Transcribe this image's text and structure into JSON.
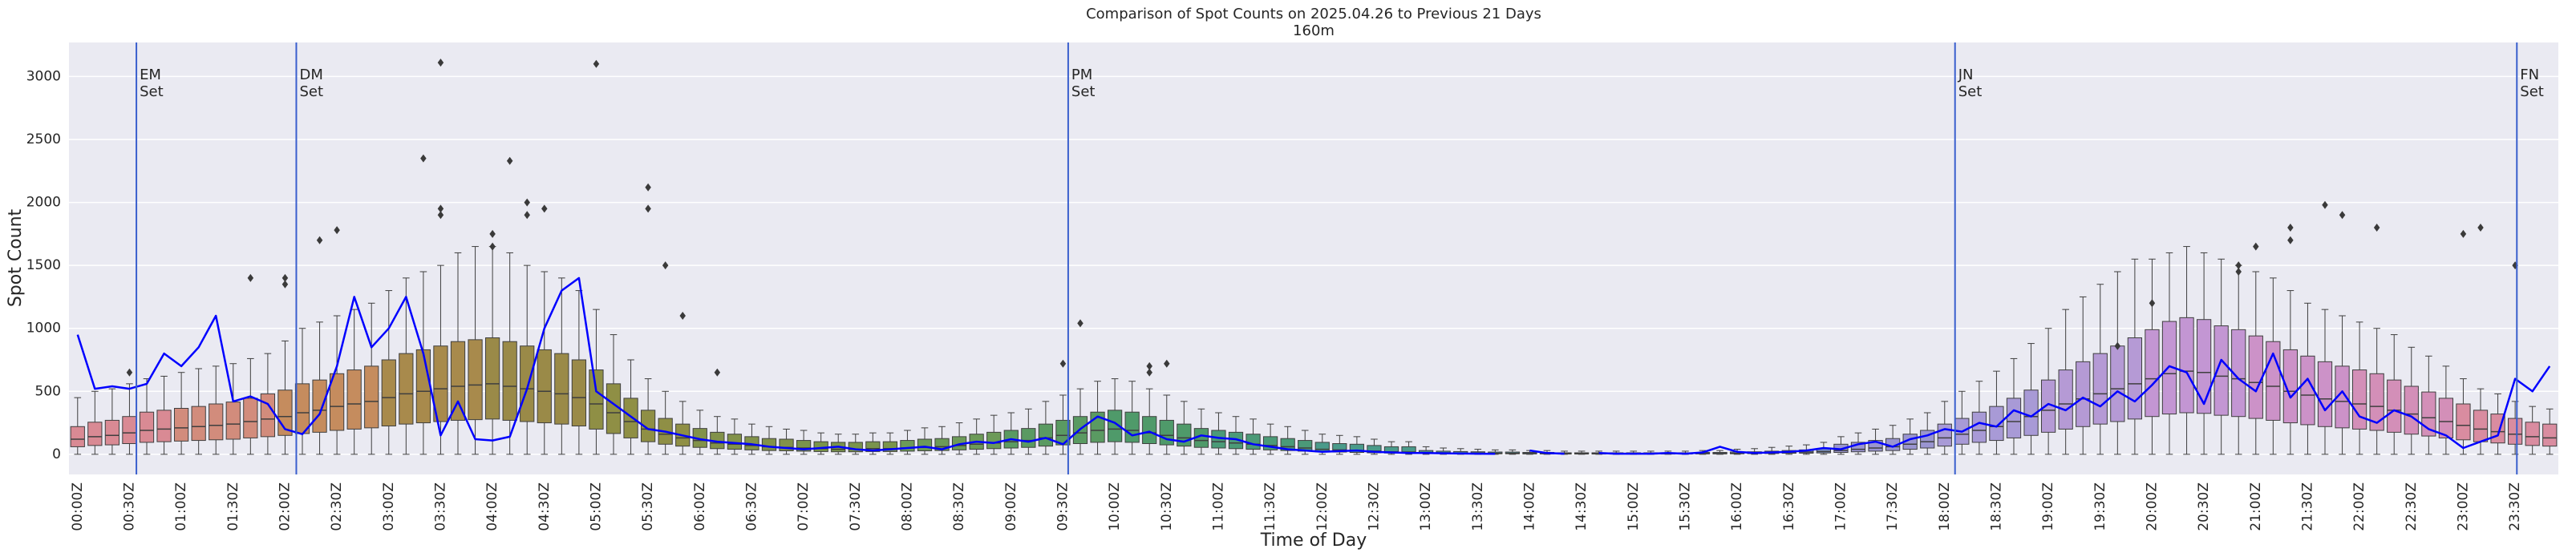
{
  "chart_data": {
    "type": "box",
    "title": "Comparison of Spot Counts on 2025.04.26 to Previous 21 Days",
    "subtitle": "160m",
    "xlabel": "Time of Day",
    "ylabel": "Spot Count",
    "ylim": [
      -160,
      3270
    ],
    "yticks": [
      0,
      500,
      1000,
      1500,
      2000,
      2500,
      3000
    ],
    "grid": true,
    "categories": [
      "00:00Z",
      null,
      null,
      "00:30Z",
      null,
      null,
      "01:00Z",
      null,
      null,
      "01:30Z",
      null,
      null,
      "02:00Z",
      null,
      null,
      "02:30Z",
      null,
      null,
      "03:00Z",
      null,
      null,
      "03:30Z",
      null,
      null,
      "04:00Z",
      null,
      null,
      "04:30Z",
      null,
      null,
      "05:00Z",
      null,
      null,
      "05:30Z",
      null,
      null,
      "06:00Z",
      null,
      null,
      "06:30Z",
      null,
      null,
      "07:00Z",
      null,
      null,
      "07:30Z",
      null,
      null,
      "08:00Z",
      null,
      null,
      "08:30Z",
      null,
      null,
      "09:00Z",
      null,
      null,
      "09:30Z",
      null,
      null,
      "10:00Z",
      null,
      null,
      "10:30Z",
      null,
      null,
      "11:00Z",
      null,
      null,
      "11:30Z",
      null,
      null,
      "12:00Z",
      null,
      null,
      "12:30Z",
      null,
      null,
      "13:00Z",
      null,
      null,
      "13:30Z",
      null,
      null,
      "14:00Z",
      null,
      null,
      "14:30Z",
      null,
      null,
      "15:00Z",
      null,
      null,
      "15:30Z",
      null,
      null,
      "16:00Z",
      null,
      null,
      "16:30Z",
      null,
      null,
      "17:00Z",
      null,
      null,
      "17:30Z",
      null,
      null,
      "18:00Z",
      null,
      null,
      "18:30Z",
      null,
      null,
      "19:00Z",
      null,
      null,
      "19:30Z",
      null,
      null,
      "20:00Z",
      null,
      null,
      "20:30Z",
      null,
      null,
      "21:00Z",
      null,
      null,
      "21:30Z",
      null,
      null,
      "22:00Z",
      null,
      null,
      "22:30Z",
      null,
      null,
      "23:00Z",
      null,
      null,
      "23:30Z",
      null,
      null
    ],
    "box_colors": [
      "#d98a94",
      "#d28c7c",
      "#c58c5e",
      "#a88a4c",
      "#9a8a48",
      "#8f8f45",
      "#82924a",
      "#7a944c",
      "#6c9a58",
      "#5a9a62",
      "#4f9a6a",
      "#4b9a78",
      "#4a9a8a",
      "#4f98a0",
      "#5893b5",
      "#6a91c2",
      "#7a90c8",
      "#9a95d0",
      "#a89ad6",
      "#b59ad5",
      "#c396d3",
      "#cc92c8",
      "#d38fb8",
      "#d98ca0"
    ],
    "whislo": [
      0,
      0,
      0,
      0,
      0,
      0,
      0,
      0,
      0,
      0,
      0,
      0,
      0,
      0,
      0,
      0,
      0,
      0,
      0,
      0,
      0,
      0,
      0,
      0,
      0,
      0,
      0,
      0,
      0,
      0,
      0,
      0,
      0,
      0,
      0,
      0,
      0,
      0,
      0,
      0,
      0,
      0,
      0,
      0,
      0,
      0,
      0,
      0,
      0,
      0,
      0,
      0,
      0,
      0,
      0,
      0,
      0,
      0,
      0,
      0,
      0,
      0,
      0,
      0,
      0,
      0,
      0,
      0,
      0,
      0,
      0,
      0,
      0,
      0,
      0,
      0,
      0,
      0,
      0,
      0,
      0,
      0,
      0,
      0,
      0,
      0,
      0,
      0,
      0,
      0,
      0,
      0,
      0,
      0,
      0,
      0,
      0,
      0,
      0,
      0,
      0,
      0,
      0,
      0,
      0,
      0,
      0,
      0,
      0,
      0,
      0,
      0,
      0,
      0,
      0,
      0,
      0,
      0,
      0,
      0,
      0,
      0,
      0,
      0,
      0,
      0,
      0,
      0,
      0,
      0,
      0,
      0,
      0,
      0,
      0,
      0,
      0,
      0,
      0,
      0,
      0,
      0,
      0,
      0
    ],
    "q1": [
      60,
      70,
      75,
      85,
      95,
      100,
      105,
      110,
      115,
      120,
      130,
      140,
      150,
      165,
      175,
      190,
      200,
      210,
      225,
      240,
      250,
      260,
      270,
      275,
      280,
      270,
      260,
      250,
      240,
      225,
      200,
      165,
      130,
      100,
      80,
      65,
      55,
      45,
      40,
      35,
      30,
      28,
      25,
      22,
      20,
      20,
      22,
      22,
      25,
      28,
      30,
      35,
      40,
      45,
      50,
      55,
      65,
      75,
      85,
      95,
      100,
      95,
      85,
      75,
      65,
      55,
      50,
      45,
      40,
      35,
      30,
      25,
      20,
      18,
      15,
      12,
      10,
      9,
      8,
      6,
      5,
      5,
      4,
      4,
      3,
      3,
      2,
      2,
      2,
      2,
      2,
      2,
      2,
      2,
      3,
      3,
      4,
      5,
      6,
      8,
      9,
      11,
      15,
      20,
      25,
      30,
      40,
      50,
      65,
      80,
      95,
      110,
      130,
      150,
      175,
      200,
      220,
      240,
      260,
      280,
      300,
      320,
      330,
      325,
      310,
      300,
      285,
      270,
      250,
      235,
      220,
      210,
      200,
      190,
      175,
      160,
      145,
      130,
      115,
      100,
      90,
      80,
      70,
      65
    ],
    "median": [
      120,
      140,
      150,
      170,
      190,
      200,
      210,
      220,
      230,
      240,
      260,
      280,
      300,
      330,
      350,
      380,
      400,
      420,
      450,
      480,
      500,
      520,
      540,
      550,
      560,
      540,
      520,
      500,
      480,
      450,
      400,
      330,
      260,
      200,
      160,
      130,
      110,
      90,
      80,
      70,
      60,
      55,
      50,
      45,
      40,
      40,
      45,
      45,
      50,
      55,
      60,
      70,
      80,
      90,
      100,
      110,
      130,
      150,
      170,
      190,
      200,
      190,
      170,
      150,
      130,
      110,
      100,
      90,
      80,
      70,
      60,
      50,
      40,
      35,
      30,
      25,
      20,
      18,
      15,
      12,
      10,
      10,
      8,
      8,
      6,
      6,
      5,
      5,
      5,
      5,
      5,
      5,
      5,
      5,
      6,
      6,
      8,
      10,
      12,
      15,
      18,
      22,
      30,
      40,
      50,
      60,
      80,
      100,
      130,
      160,
      190,
      220,
      260,
      300,
      350,
      400,
      440,
      480,
      520,
      560,
      600,
      640,
      660,
      650,
      620,
      600,
      570,
      540,
      500,
      470,
      440,
      420,
      400,
      380,
      350,
      320,
      290,
      260,
      230,
      200,
      180,
      160,
      140,
      130
    ],
    "q3": [
      220,
      255,
      270,
      300,
      335,
      350,
      365,
      380,
      400,
      415,
      445,
      480,
      510,
      560,
      590,
      640,
      670,
      700,
      750,
      800,
      830,
      860,
      895,
      910,
      925,
      895,
      860,
      830,
      800,
      750,
      670,
      560,
      445,
      350,
      285,
      240,
      205,
      175,
      160,
      140,
      125,
      120,
      110,
      100,
      95,
      95,
      100,
      100,
      110,
      120,
      125,
      140,
      160,
      175,
      190,
      205,
      240,
      270,
      300,
      335,
      350,
      335,
      300,
      270,
      240,
      205,
      190,
      175,
      160,
      140,
      125,
      110,
      95,
      85,
      80,
      70,
      60,
      60,
      30,
      25,
      22,
      20,
      18,
      18,
      15,
      15,
      12,
      12,
      12,
      12,
      12,
      12,
      12,
      12,
      15,
      15,
      18,
      20,
      25,
      30,
      35,
      45,
      80,
      95,
      110,
      125,
      160,
      190,
      240,
      285,
      335,
      380,
      445,
      510,
      590,
      670,
      735,
      800,
      860,
      925,
      990,
      1055,
      1085,
      1070,
      1020,
      990,
      940,
      895,
      830,
      780,
      735,
      700,
      670,
      640,
      590,
      540,
      495,
      445,
      400,
      350,
      320,
      285,
      255,
      240
    ],
    "whishi": [
      450,
      500,
      520,
      560,
      600,
      620,
      650,
      680,
      700,
      720,
      760,
      800,
      900,
      1000,
      1050,
      1100,
      1150,
      1200,
      1300,
      1400,
      1450,
      1500,
      1600,
      1650,
      1650,
      1600,
      1500,
      1450,
      1400,
      1300,
      1150,
      950,
      750,
      600,
      500,
      420,
      350,
      300,
      280,
      240,
      220,
      200,
      190,
      170,
      160,
      160,
      170,
      170,
      190,
      210,
      220,
      250,
      280,
      310,
      330,
      360,
      420,
      470,
      520,
      580,
      600,
      580,
      520,
      470,
      420,
      360,
      330,
      300,
      280,
      240,
      220,
      190,
      160,
      150,
      140,
      120,
      100,
      100,
      60,
      50,
      45,
      40,
      35,
      35,
      30,
      30,
      25,
      25,
      25,
      25,
      25,
      25,
      25,
      25,
      30,
      30,
      40,
      45,
      55,
      65,
      75,
      95,
      140,
      170,
      200,
      230,
      280,
      330,
      420,
      500,
      580,
      660,
      760,
      880,
      1000,
      1150,
      1250,
      1350,
      1450,
      1550,
      1550,
      1600,
      1650,
      1600,
      1550,
      1500,
      1450,
      1400,
      1300,
      1200,
      1150,
      1100,
      1050,
      1000,
      950,
      850,
      780,
      700,
      600,
      520,
      480,
      420,
      380,
      360
    ],
    "outliers": [
      [],
      [],
      [],
      [
        650
      ],
      [],
      [],
      [],
      [],
      [],
      [],
      [
        1400
      ],
      [],
      [
        1400,
        1350
      ],
      [],
      [
        1700
      ],
      [
        1780
      ],
      [],
      [],
      [],
      [],
      [
        2350
      ],
      [
        3110,
        1950,
        1900
      ],
      [],
      [],
      [
        1750,
        1650
      ],
      [
        2330
      ],
      [
        2000,
        1900
      ],
      [
        1950
      ],
      [],
      [],
      [
        3100
      ],
      [],
      [],
      [
        2120,
        1950
      ],
      [
        1500
      ],
      [
        1100
      ],
      [],
      [
        650
      ],
      [],
      [],
      [],
      [],
      [],
      [],
      [],
      [],
      [],
      [],
      [],
      [],
      [],
      [],
      [],
      [],
      [],
      [],
      [],
      [
        720
      ],
      [
        1040
      ],
      [],
      [],
      [],
      [
        700,
        650
      ],
      [
        720
      ],
      [],
      [],
      [],
      [],
      [],
      [],
      [],
      [],
      [],
      [],
      [],
      [],
      [],
      [],
      [],
      [],
      [],
      [],
      [],
      [],
      [],
      [],
      [],
      [],
      [],
      [],
      [],
      [],
      [],
      [],
      [],
      [],
      [],
      [],
      [],
      [],
      [],
      [],
      [],
      [],
      [],
      [],
      [],
      [],
      [],
      [],
      [],
      [],
      [],
      [],
      [],
      [],
      [],
      [],
      [
        860
      ],
      [],
      [
        1200
      ],
      [],
      [],
      [],
      [],
      [
        1500,
        1450
      ],
      [
        1650
      ],
      [],
      [
        1800,
        1700
      ],
      [],
      [
        1980
      ],
      [
        1900
      ],
      [],
      [
        1800
      ],
      [],
      [],
      [],
      [],
      [
        1750
      ],
      [
        1800
      ],
      [],
      [
        1500
      ],
      [],
      [],
      [],
      [],
      [],
      [],
      [],
      [],
      [],
      []
    ],
    "line": {
      "color": "#0000ff",
      "values": [
        950,
        520,
        540,
        520,
        560,
        800,
        700,
        850,
        1100,
        420,
        460,
        400,
        200,
        160,
        320,
        700,
        1250,
        850,
        1000,
        1250,
        800,
        150,
        420,
        120,
        110,
        140,
        520,
        1000,
        1300,
        1400,
        500,
        400,
        300,
        200,
        180,
        150,
        120,
        100,
        90,
        80,
        60,
        50,
        40,
        50,
        60,
        40,
        30,
        40,
        50,
        60,
        40,
        80,
        100,
        90,
        120,
        100,
        130,
        80,
        200,
        300,
        250,
        150,
        180,
        120,
        100,
        150,
        130,
        120,
        80,
        60,
        40,
        30,
        20,
        25,
        30,
        20,
        15,
        10,
        10,
        8,
        6,
        5,
        4,
        null,
        30,
        10,
        5,
        null,
        10,
        5,
        5,
        5,
        10,
        5,
        15,
        60,
        20,
        10,
        15,
        20,
        30,
        50,
        40,
        80,
        100,
        60,
        120,
        150,
        200,
        180,
        250,
        220,
        350,
        300,
        400,
        350,
        450,
        380,
        500,
        420,
        550,
        700,
        650,
        400,
        750,
        600,
        500,
        800,
        450,
        600,
        350,
        500,
        300,
        250,
        350,
        300,
        200,
        150,
        50,
        100,
        150,
        600,
        500,
        700
      ]
    },
    "annotations": [
      {
        "label": "EM\nSet",
        "x": 3.4
      },
      {
        "label": "DM\nSet",
        "x": 12.65
      },
      {
        "label": "PM\nSet",
        "x": 57.3
      },
      {
        "label": "JN\nSet",
        "x": 108.6
      },
      {
        "label": "FN\nSet",
        "x": 141.1
      }
    ],
    "annotation_color": "#3a5fcd"
  }
}
